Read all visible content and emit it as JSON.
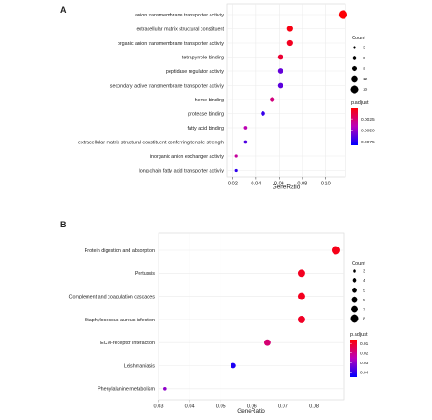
{
  "chart_data": [
    {
      "type": "scatter",
      "panel_label": "A",
      "xlabel": "GeneRatio",
      "ylabel": "",
      "xlim": [
        0.015,
        0.117
      ],
      "xticks": [
        0.02,
        0.04,
        0.06,
        0.08,
        0.1
      ],
      "xtick_labels": [
        "0.02",
        "0.04",
        "0.06",
        "0.08",
        "0.10"
      ],
      "grid": true,
      "legend_position": "right",
      "categories": [
        "anion transmembrane transporter activity",
        "extracellular matrix structural constituent",
        "organic anion transmembrane transporter activity",
        "tetrapyrrole binding",
        "peptidase regulator activity",
        "secondary active transmembrane transporter activity",
        "heme binding",
        "protease binding",
        "fatty acid binding",
        "extracellular matrix structural constituent conferring tensile strength",
        "inorganic anion exchanger activity",
        "long-chain fatty acid transporter activity"
      ],
      "gene_ratio": [
        0.115,
        0.069,
        0.069,
        0.061,
        0.061,
        0.061,
        0.054,
        0.046,
        0.031,
        0.031,
        0.023,
        0.023
      ],
      "count": [
        15,
        9,
        9,
        8,
        8,
        8,
        7,
        6,
        4,
        4,
        3,
        3
      ],
      "p_adjust": [
        0.0002,
        0.0005,
        0.0008,
        0.0012,
        0.006,
        0.0062,
        0.0028,
        0.007,
        0.004,
        0.0065,
        0.0035,
        0.0072
      ],
      "size_legend": {
        "title": "Count",
        "labels": [
          "3",
          "6",
          "9",
          "12",
          "15"
        ],
        "values": [
          3,
          6,
          9,
          12,
          15
        ]
      },
      "color_legend": {
        "title": "p.adjust",
        "labels": [
          "0.0025",
          "0.0050",
          "0.0075"
        ],
        "values": [
          0.0025,
          0.005,
          0.0075
        ],
        "range": [
          0.0001,
          0.0082
        ]
      },
      "colors": {
        "low": "#ff0000",
        "high": "#0000ff"
      }
    },
    {
      "type": "scatter",
      "panel_label": "B",
      "xlabel": "GeneRatio",
      "ylabel": "",
      "xlim": [
        0.03,
        0.0895
      ],
      "xticks": [
        0.03,
        0.04,
        0.05,
        0.06,
        0.07,
        0.08
      ],
      "xtick_labels": [
        "0.03",
        "0.04",
        "0.05",
        "0.06",
        "0.07",
        "0.08"
      ],
      "grid": true,
      "legend_position": "right",
      "categories": [
        "Protein digestion and absorption",
        "Pertussis",
        "Complement and coagulation cascades",
        "Staphylococcus aureus infection",
        "ECM-receptor interaction",
        "Leishmaniasis",
        "Phenylalanine metabolism"
      ],
      "gene_ratio": [
        0.087,
        0.076,
        0.076,
        0.076,
        0.065,
        0.054,
        0.032
      ],
      "count": [
        8,
        7,
        7,
        7,
        6,
        5,
        3
      ],
      "p_adjust": [
        0.0085,
        0.0095,
        0.0092,
        0.01,
        0.018,
        0.042,
        0.03
      ],
      "size_legend": {
        "title": "Count",
        "labels": [
          "3",
          "4",
          "5",
          "6",
          "7",
          "8"
        ],
        "values": [
          3,
          4,
          5,
          6,
          7,
          8
        ]
      },
      "color_legend": {
        "title": "p.adjust",
        "labels": [
          "0.01",
          "0.02",
          "0.03",
          "0.04"
        ],
        "values": [
          0.01,
          0.02,
          0.03,
          0.04
        ],
        "range": [
          0.006,
          0.045
        ]
      },
      "colors": {
        "low": "#ff0000",
        "high": "#0000ff"
      }
    }
  ]
}
